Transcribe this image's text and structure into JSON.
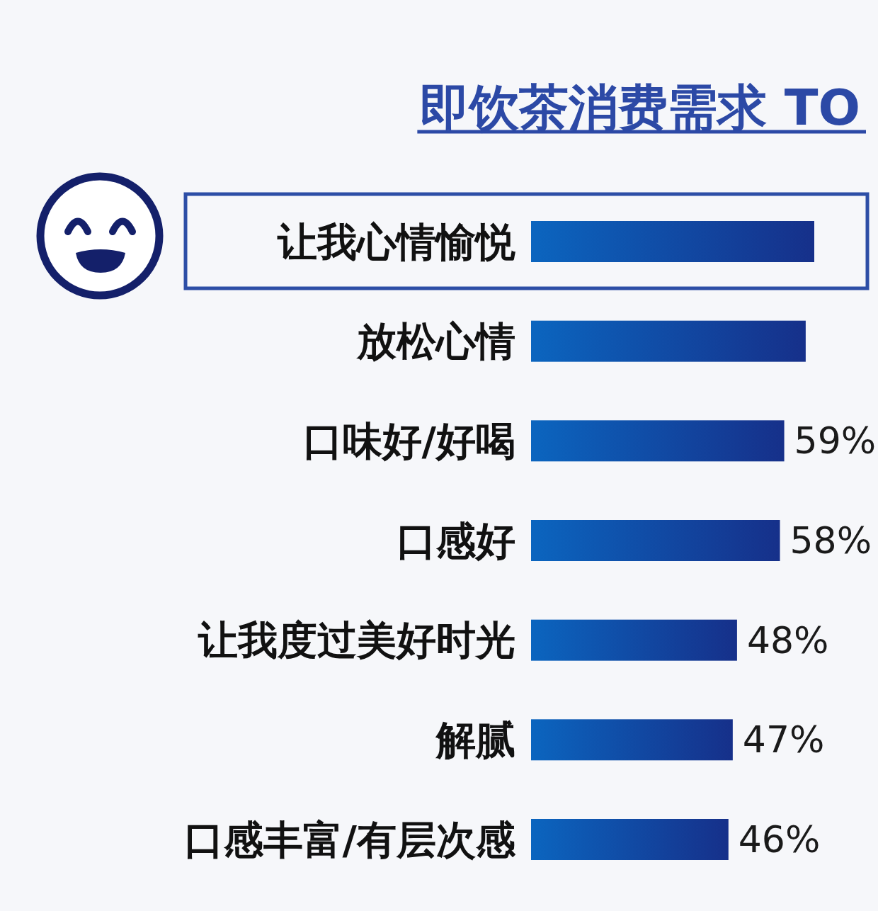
{
  "chart_data": {
    "type": "bar",
    "orientation": "horizontal",
    "title": "即饮茶消费需求 TO",
    "categories": [
      "让我心情愉悦",
      "放松心情",
      "口味好/好喝",
      "口感好",
      "让我度过美好时光",
      "解腻",
      "口感丰富/有层次感"
    ],
    "values": [
      66,
      64,
      59,
      58,
      48,
      47,
      46
    ],
    "value_labels": [
      null,
      null,
      "59%",
      "58%",
      "48%",
      "47%",
      "46%"
    ],
    "color": "#0b65bf"
  }
}
